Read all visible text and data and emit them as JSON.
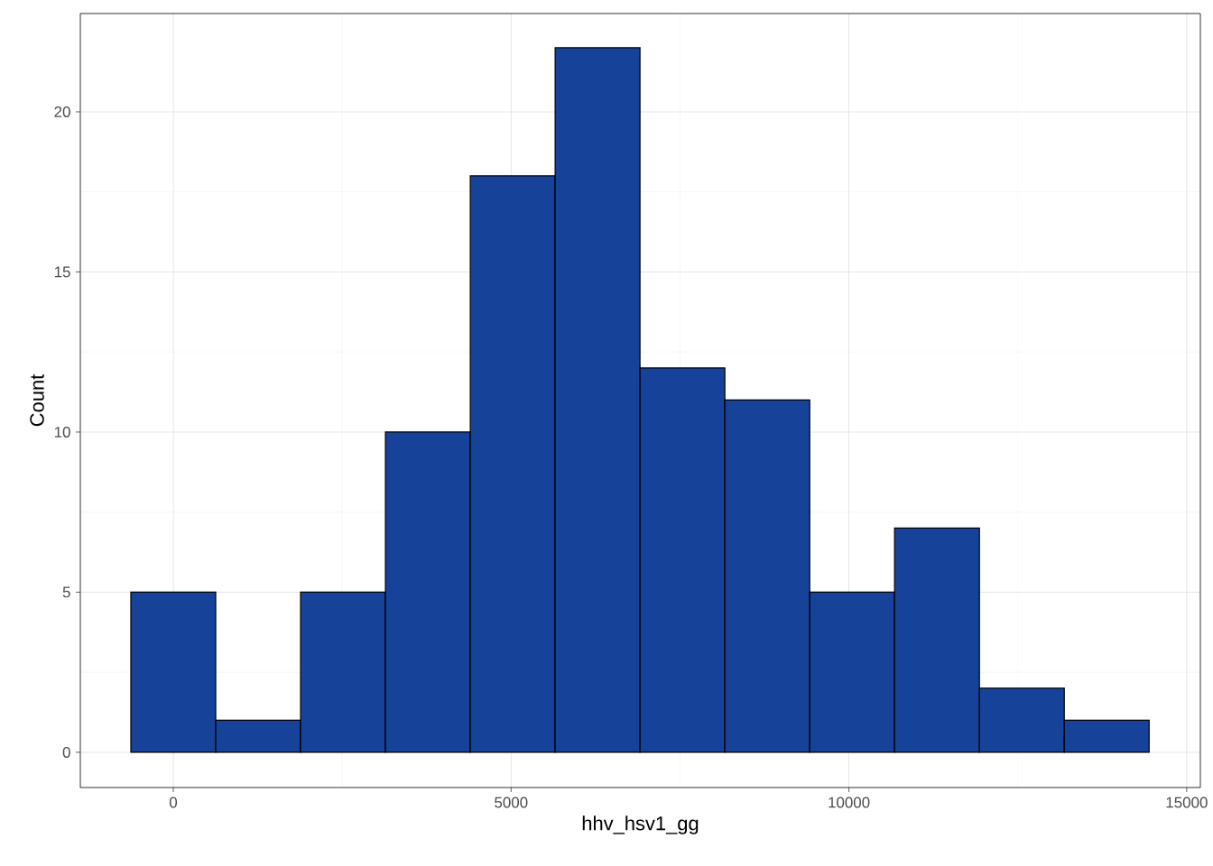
{
  "chart_data": {
    "type": "histogram",
    "xlabel": "hhv_hsv1_gg",
    "ylabel": "Count",
    "bins": [
      -628,
      628,
      1884,
      3140,
      4396,
      5652,
      6908,
      8164,
      9420,
      10676,
      11932,
      13188,
      14444
    ],
    "values": [
      5,
      1,
      5,
      10,
      18,
      22,
      12,
      11,
      5,
      7,
      2,
      1
    ],
    "color": "#17429a",
    "xlim": [
      -1376,
      15202
    ],
    "ylim": [
      -1.1,
      23.07
    ],
    "xticks": [
      0,
      5000,
      10000,
      15000
    ],
    "yticks": [
      0,
      5,
      10,
      15,
      20
    ],
    "grid": true
  }
}
